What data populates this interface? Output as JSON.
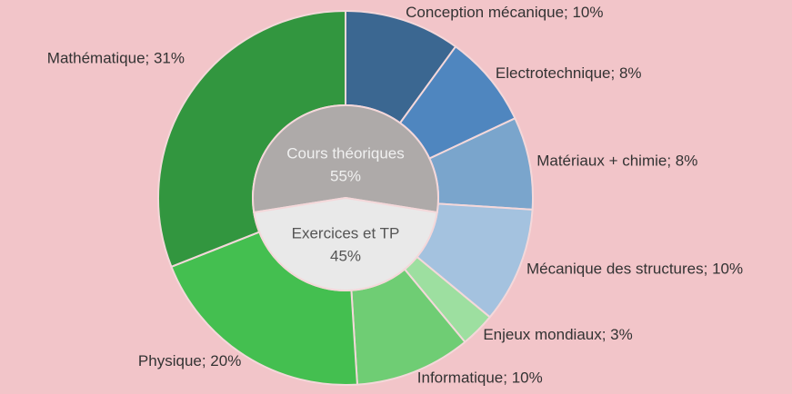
{
  "chart_data": {
    "type": "nested-donut",
    "outer": {
      "labels": [
        "Conception mécanique; 10%",
        "Electrotechnique; 8%",
        "Matériaux + chimie; 8%",
        "Mécanique des structures; 10%",
        "Enjeux mondiaux; 3%",
        "Informatique; 10%",
        "Physique; 20%",
        "Mathématique; 31%"
      ],
      "values": [
        10,
        8,
        8,
        10,
        3,
        10,
        20,
        31
      ],
      "colors": [
        "#3b6791",
        "#4f86bf",
        "#7aa5cc",
        "#a4c2df",
        "#9ddfa0",
        "#6fcd74",
        "#44bf50",
        "#32963f"
      ]
    },
    "inner": {
      "categories": [
        "Cours théoriques",
        "Exercices et TP"
      ],
      "values": [
        55,
        45
      ],
      "value_labels": [
        "55%",
        "45%"
      ],
      "colors": [
        "#aeaaa9",
        "#e9e9e9"
      ]
    }
  }
}
